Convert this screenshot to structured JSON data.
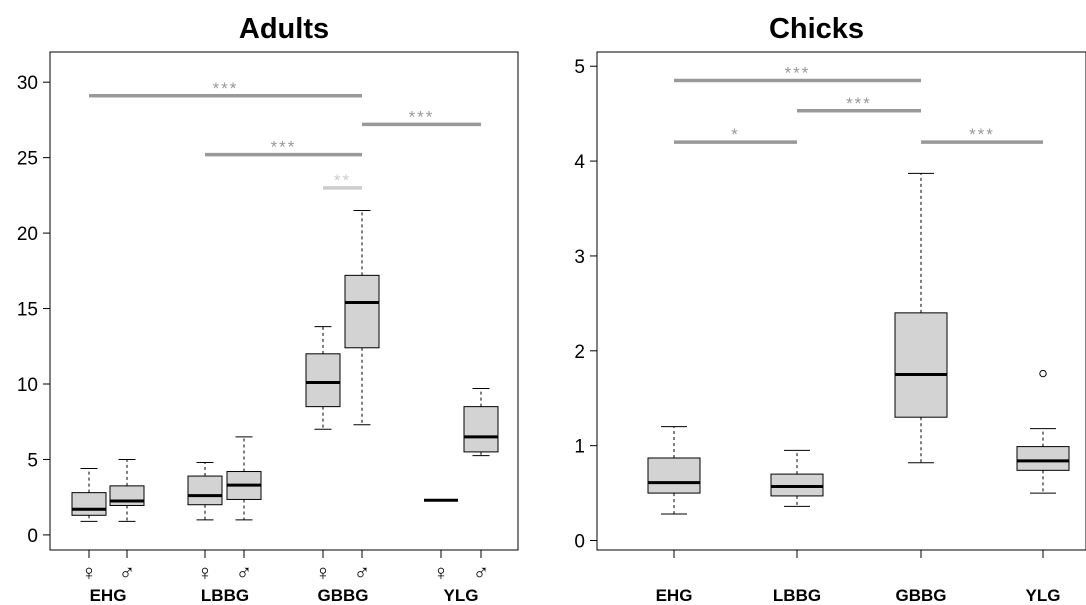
{
  "chart_data": [
    {
      "type": "box",
      "title": "Adults",
      "xlabel": "",
      "ylabel": "",
      "ylim": [
        -1,
        32
      ],
      "yticks": [
        0,
        5,
        10,
        15,
        20,
        25,
        30
      ],
      "groups": [
        "EHG",
        "LBBG",
        "GBBG",
        "YLG"
      ],
      "sex_labels": {
        "female": "♀",
        "male": "♂"
      },
      "boxes": [
        {
          "group": "EHG",
          "sex": "female",
          "min": 0.9,
          "q1": 1.3,
          "median": 1.7,
          "q3": 2.8,
          "max": 4.4
        },
        {
          "group": "EHG",
          "sex": "male",
          "min": 0.9,
          "q1": 1.95,
          "median": 2.25,
          "q3": 3.25,
          "max": 5.0
        },
        {
          "group": "LBBG",
          "sex": "female",
          "min": 1.0,
          "q1": 2.0,
          "median": 2.6,
          "q3": 3.9,
          "max": 4.8
        },
        {
          "group": "LBBG",
          "sex": "male",
          "min": 1.0,
          "q1": 2.35,
          "median": 3.3,
          "q3": 4.2,
          "max": 6.5
        },
        {
          "group": "GBBG",
          "sex": "female",
          "min": 7.0,
          "q1": 8.5,
          "median": 10.1,
          "q3": 12.0,
          "max": 13.8
        },
        {
          "group": "GBBG",
          "sex": "male",
          "min": 7.3,
          "q1": 12.4,
          "median": 15.4,
          "q3": 17.2,
          "max": 21.5
        },
        {
          "group": "YLG",
          "sex": "female",
          "min": 2.3,
          "q1": 2.3,
          "median": 2.3,
          "q3": 2.3,
          "max": 2.3
        },
        {
          "group": "YLG",
          "sex": "male",
          "min": 5.25,
          "q1": 5.5,
          "median": 6.5,
          "q3": 8.5,
          "max": 9.7
        }
      ],
      "significance": [
        {
          "from_box": 0,
          "to_box": 5,
          "y": 29.1,
          "label": "***",
          "color": "#999999"
        },
        {
          "from_box": 5,
          "to_box": 7,
          "y": 27.2,
          "label": "***",
          "color": "#999999"
        },
        {
          "from_box": 2,
          "to_box": 5,
          "y": 25.2,
          "label": "***",
          "color": "#999999"
        },
        {
          "from_box": 4,
          "to_box": 5,
          "y": 23.0,
          "label": "**",
          "color": "#cccccc"
        }
      ]
    },
    {
      "type": "box",
      "title": "Chicks",
      "xlabel": "",
      "ylabel": "",
      "ylim": [
        -0.1,
        5.15
      ],
      "yticks": [
        0,
        1,
        2,
        3,
        4,
        5
      ],
      "groups": [
        "EHG",
        "LBBG",
        "GBBG",
        "YLG"
      ],
      "boxes": [
        {
          "group": "EHG",
          "min": 0.28,
          "q1": 0.5,
          "median": 0.61,
          "q3": 0.87,
          "max": 1.2
        },
        {
          "group": "LBBG",
          "min": 0.36,
          "q1": 0.47,
          "median": 0.57,
          "q3": 0.7,
          "max": 0.95
        },
        {
          "group": "GBBG",
          "min": 0.82,
          "q1": 1.3,
          "median": 1.75,
          "q3": 2.4,
          "max": 3.87
        },
        {
          "group": "YLG",
          "min": 0.5,
          "q1": 0.74,
          "median": 0.84,
          "q3": 0.99,
          "max": 1.18,
          "outliers": [
            1.76
          ]
        }
      ],
      "significance": [
        {
          "from_box": 0,
          "to_box": 2,
          "y": 4.85,
          "label": "***",
          "color": "#999999"
        },
        {
          "from_box": 1,
          "to_box": 2,
          "y": 4.53,
          "label": "***",
          "color": "#999999"
        },
        {
          "from_box": 0,
          "to_box": 1,
          "y": 4.2,
          "label": "*",
          "color": "#999999"
        },
        {
          "from_box": 2,
          "to_box": 3,
          "y": 4.2,
          "label": "***",
          "color": "#999999"
        }
      ]
    }
  ]
}
